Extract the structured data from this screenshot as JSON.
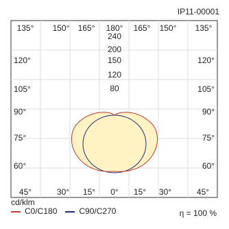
{
  "chart_data": {
    "type": "polar",
    "code": "IP11-00001",
    "unit": "cd/klm",
    "efficiency": "η = 100 %",
    "angle_labels_top": [
      "135°",
      "150°",
      "165°",
      "180°",
      "165°",
      "150°",
      "135°"
    ],
    "angle_labels_side_left": [
      "120°",
      "105°",
      "90°",
      "75°",
      "60°"
    ],
    "angle_labels_side_right": [
      "120°",
      "105°",
      "90°",
      "75°",
      "60°"
    ],
    "angle_labels_bottom": [
      "45°",
      "30°",
      "15°",
      "0°",
      "15°",
      "30°",
      "45°"
    ],
    "radial_ticks": [
      240,
      200,
      150,
      120,
      80
    ],
    "series": [
      {
        "name": "C0/C180",
        "color": "#c0392b"
      },
      {
        "name": "C90/C270",
        "color": "#1a2a80"
      }
    ],
    "fill_color": "#fff3c4"
  }
}
